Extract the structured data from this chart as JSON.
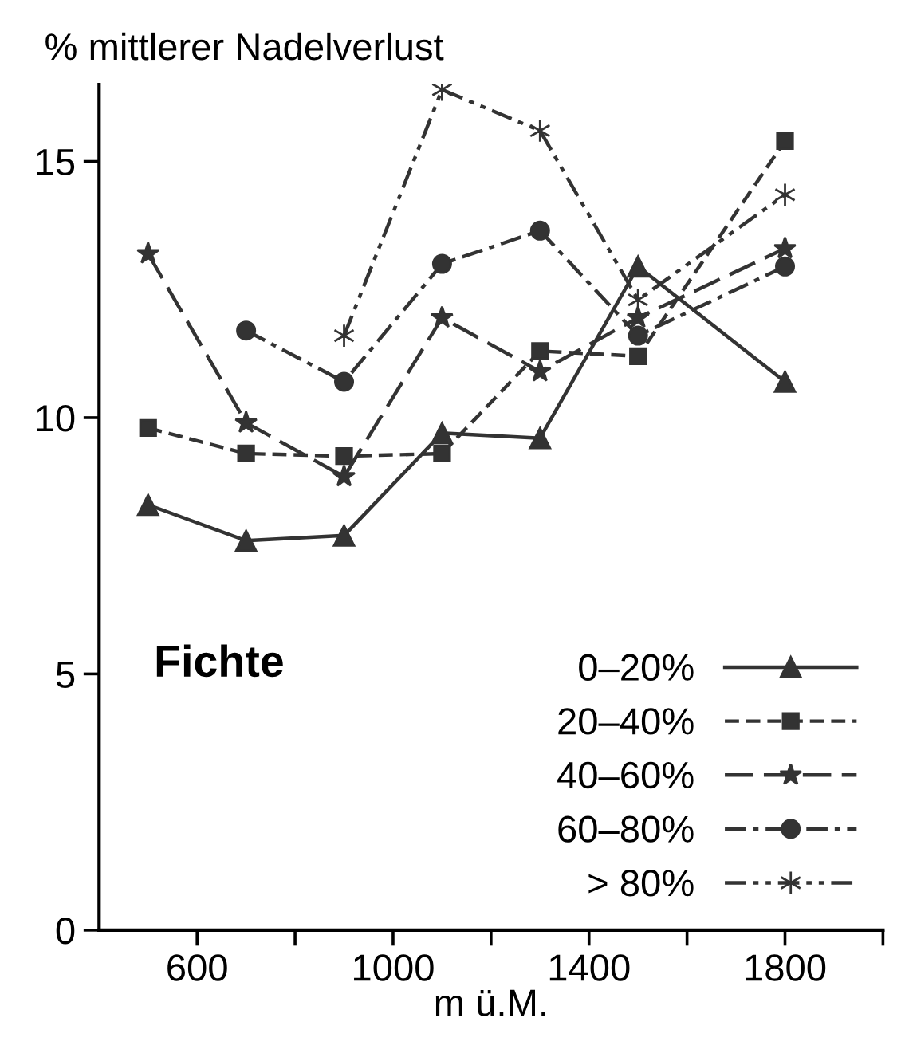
{
  "chart_data": {
    "type": "line",
    "ylabel": "% mittlerer Nadelverlust",
    "xlabel": "m ü.M.",
    "annotations": [
      "Fichte"
    ],
    "xlim": [
      400,
      2000
    ],
    "ylim": [
      0,
      16.5
    ],
    "xticks": [
      600,
      {
        "value": 800,
        "label": null
      },
      1000,
      {
        "value": 1200,
        "label": null
      },
      1400,
      {
        "value": 1600,
        "label": null
      },
      1800,
      {
        "value": 2000,
        "label": null
      }
    ],
    "yticks": [
      0,
      5,
      10,
      15
    ],
    "grid": false,
    "legend": "bottom right",
    "series": [
      {
        "name": "0–20%",
        "color": "#333333",
        "marker": "triangle",
        "line_style": "solid",
        "x": [
          500,
          700,
          900,
          1100,
          1300,
          1500,
          1800
        ],
        "values": [
          8.3,
          7.6,
          7.7,
          9.7,
          9.6,
          12.95,
          10.7
        ]
      },
      {
        "name": "20–40%",
        "color": "#333333",
        "marker": "square",
        "line_style": "dashed",
        "x": [
          500,
          700,
          900,
          1100,
          1300,
          1500,
          1800
        ],
        "values": [
          9.8,
          9.3,
          9.25,
          9.3,
          11.3,
          11.2,
          15.4
        ]
      },
      {
        "name": "40–60%",
        "color": "#333333",
        "marker": "star",
        "line_style": "longdash",
        "x": [
          500,
          700,
          900,
          1100,
          1300,
          1500,
          1800
        ],
        "values": [
          13.2,
          9.9,
          8.85,
          11.95,
          10.9,
          11.95,
          13.3
        ]
      },
      {
        "name": "60–80%",
        "color": "#333333",
        "marker": "circle",
        "line_style": "dashdot",
        "x": [
          700,
          900,
          1100,
          1300,
          1500,
          1800
        ],
        "values": [
          11.7,
          10.7,
          13.0,
          13.65,
          11.6,
          12.95
        ]
      },
      {
        "name": "> 80%",
        "color": "#333333",
        "marker": "cross",
        "line_style": "dashdotdot",
        "x": [
          900,
          1100,
          1300,
          1500,
          1800
        ],
        "values": [
          11.6,
          16.4,
          15.6,
          12.3,
          14.35
        ]
      }
    ]
  }
}
